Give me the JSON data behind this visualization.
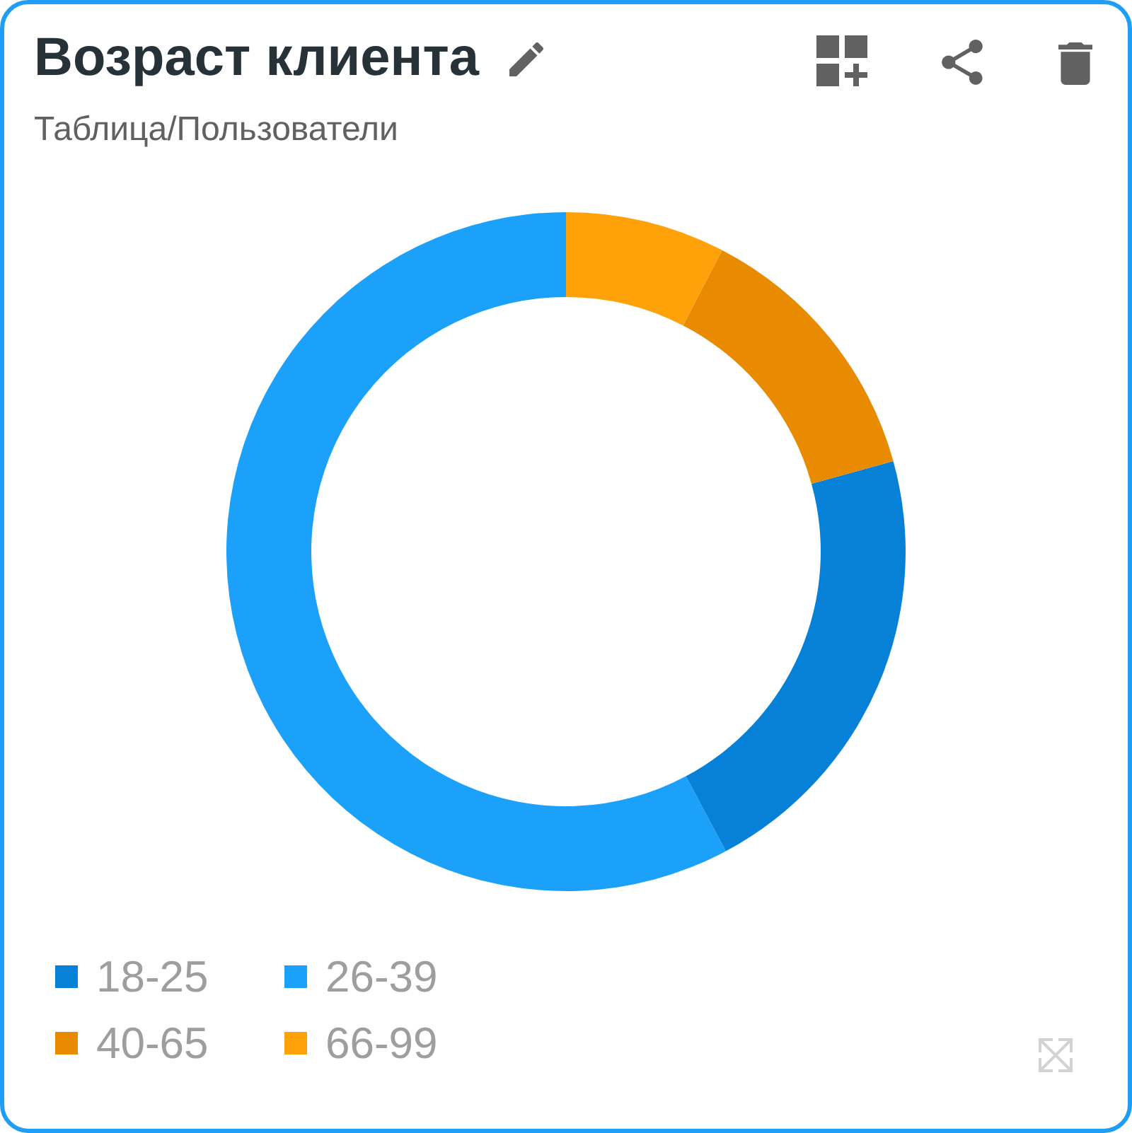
{
  "chart_data": {
    "type": "donut",
    "title": "Возраст клиента",
    "subtitle": "Таблица/Пользователи",
    "categories": [
      "18-25",
      "26-39",
      "40-65",
      "66-99"
    ],
    "values": [
      21.5,
      57.8,
      13.1,
      7.6
    ],
    "colors": [
      "#0781d8",
      "#1ca1fb",
      "#e98b00",
      "#ffa209"
    ],
    "legend": "bottom left"
  }
}
